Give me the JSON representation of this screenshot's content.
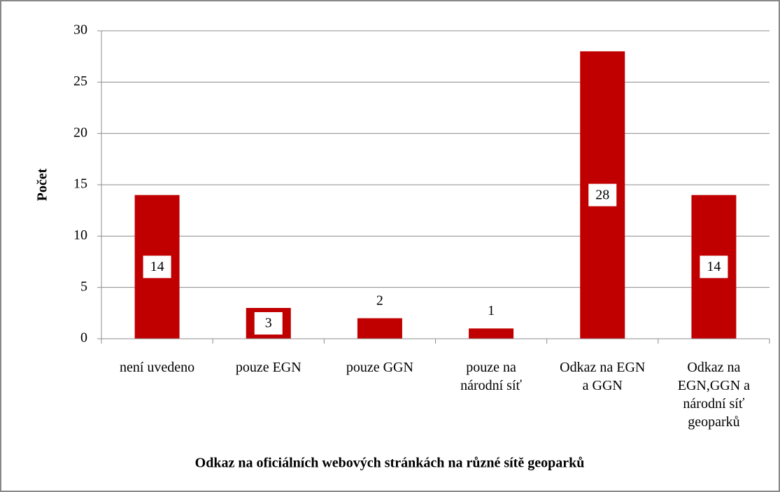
{
  "chart_data": {
    "type": "bar",
    "categories": [
      "není uvedeno",
      "pouze EGN",
      "pouze GGN",
      "pouze na národní síť",
      "Odkaz na EGN a GGN",
      "Odkaz na EGN,GGN a národní síť geoparků"
    ],
    "values": [
      14,
      3,
      2,
      1,
      28,
      14
    ],
    "color": "#c00000",
    "ylim": [
      0,
      30
    ],
    "yticks": [
      0,
      5,
      10,
      15,
      20,
      25,
      30
    ],
    "grid": true,
    "y_label": "Počet",
    "x_label": "Odkaz na oficiálních webových stránkách na různé sítě geoparků"
  }
}
